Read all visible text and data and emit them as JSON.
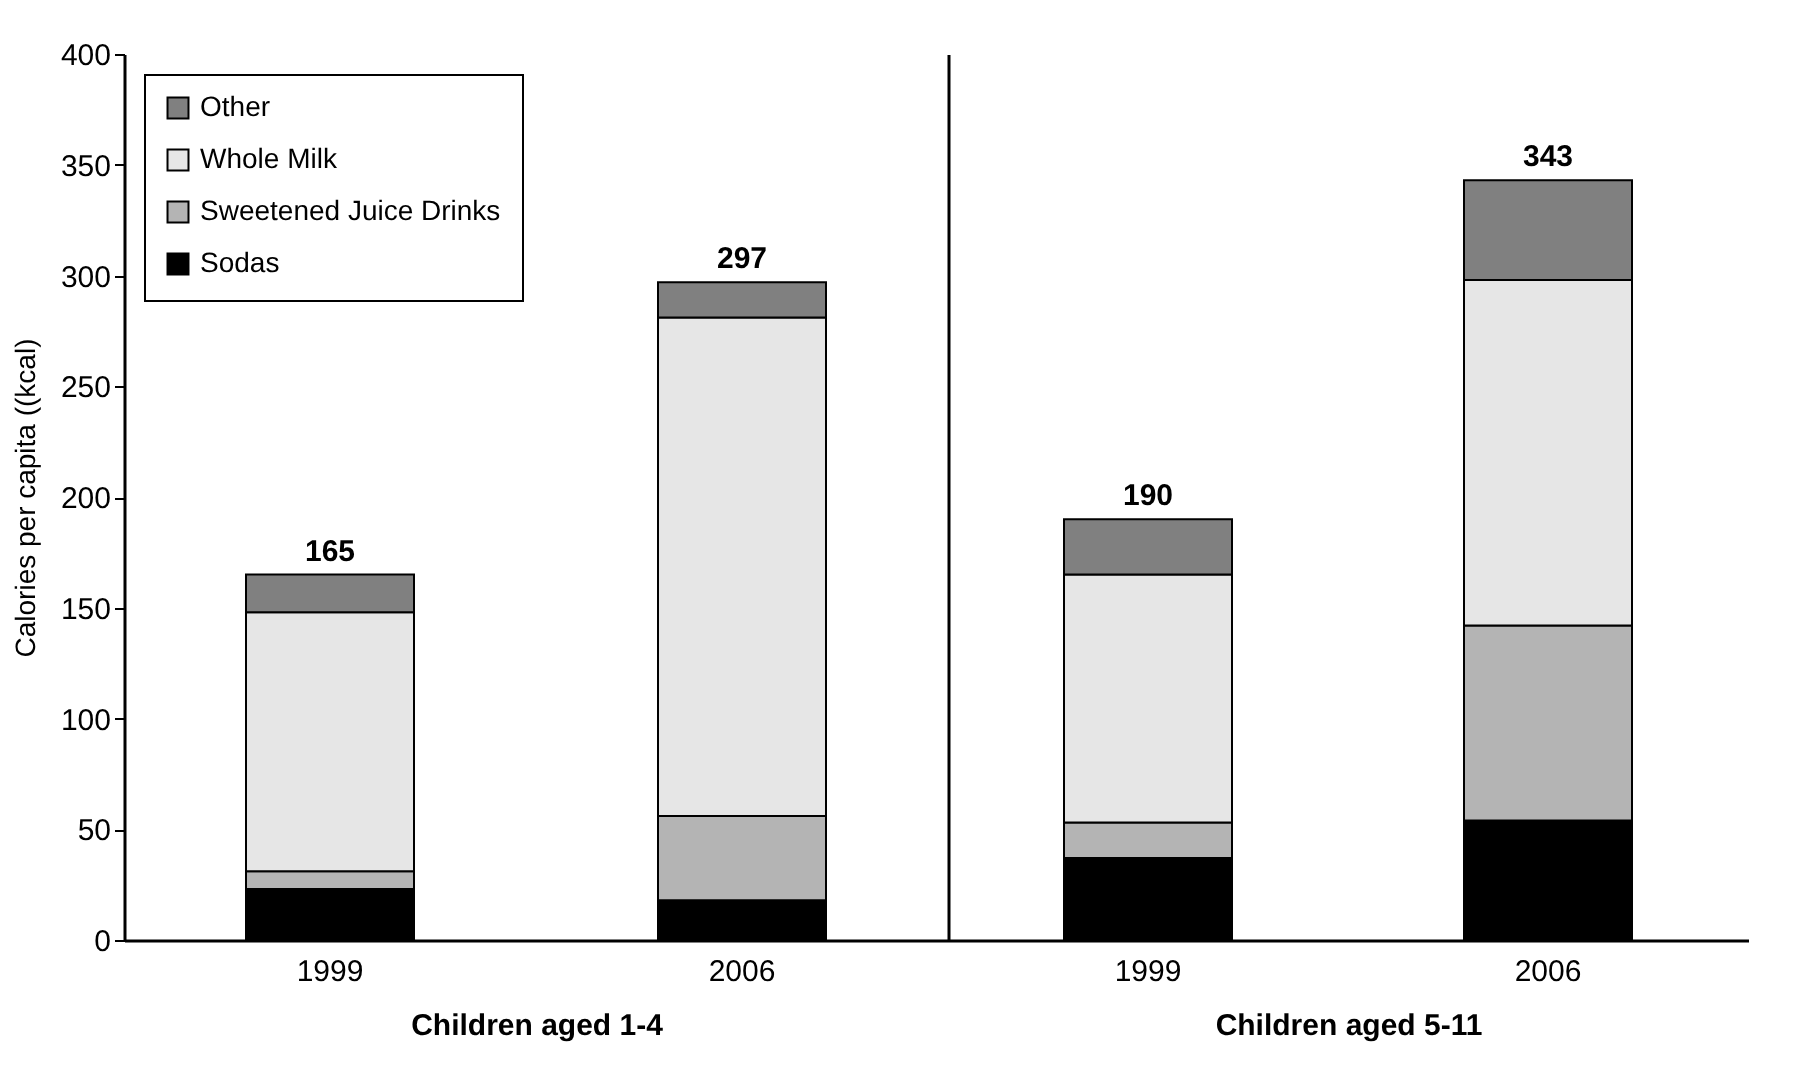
{
  "chart_data": [
    {
      "type": "bar",
      "stacked": true,
      "xlabel": "Children aged 1-4",
      "ylabel": "Calories per capita ((kcal)",
      "categories": [
        "1999",
        "2006"
      ],
      "series": [
        {
          "name": "Sodas",
          "color": "#000000",
          "values": [
            23,
            18
          ]
        },
        {
          "name": "Sweetened Juice Drinks",
          "color": "#b4b4b4",
          "values": [
            8,
            38
          ]
        },
        {
          "name": "Whole Milk",
          "color": "#e6e6e6",
          "values": [
            117,
            225
          ]
        },
        {
          "name": "Other",
          "color": "#808080",
          "values": [
            17,
            16
          ]
        }
      ],
      "totals": [
        "165",
        "297"
      ],
      "ylim": [
        0,
        400
      ],
      "yticks": [
        0,
        50,
        100,
        150,
        200,
        250,
        300,
        350,
        400
      ],
      "legend": "top left"
    },
    {
      "type": "bar",
      "stacked": true,
      "xlabel": "Children aged 5-11",
      "categories": [
        "1999",
        "2006"
      ],
      "series": [
        {
          "color": "#000000",
          "values": [
            37,
            54
          ]
        },
        {
          "color": "#b4b4b4",
          "values": [
            16,
            88
          ]
        },
        {
          "color": "#e6e6e6",
          "values": [
            112,
            156
          ]
        },
        {
          "color": "#808080",
          "values": [
            25,
            45
          ]
        }
      ],
      "totals": [
        "190",
        "343"
      ],
      "ylim": [
        0,
        400
      ],
      "yticks": [
        0,
        50,
        100,
        150,
        200,
        250,
        300,
        350,
        400
      ],
      "tick_labels": "x"
    }
  ]
}
